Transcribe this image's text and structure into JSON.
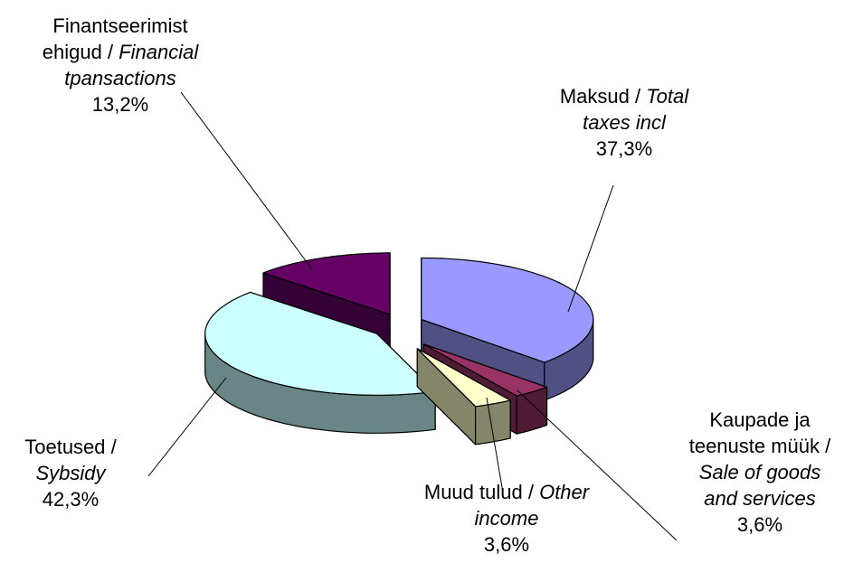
{
  "chart_data": {
    "type": "pie3d",
    "slices": [
      {
        "label_et": "Maksud /",
        "label_en": "Total taxes incl",
        "value": 37.3,
        "value_label": "37,3%",
        "color": "#9999ff"
      },
      {
        "label_et": "Kaupade ja teenuste müük /",
        "label_en": "Sale of goods and services",
        "value": 3.6,
        "value_label": "3,6%",
        "color": "#993366"
      },
      {
        "label_et": "Muud tulud /",
        "label_en": "Other income",
        "value": 3.6,
        "value_label": "3,6%",
        "color": "#ffffcc"
      },
      {
        "label_et": "Toetused /",
        "label_en": "Sybsidy",
        "value": 42.3,
        "value_label": "42,3%",
        "color": "#ccffff"
      },
      {
        "label_et": "Finantseerimist ehigud /",
        "label_en": "Financial tpansactions",
        "value": 13.2,
        "value_label": "13,2%",
        "color": "#660066"
      }
    ]
  }
}
